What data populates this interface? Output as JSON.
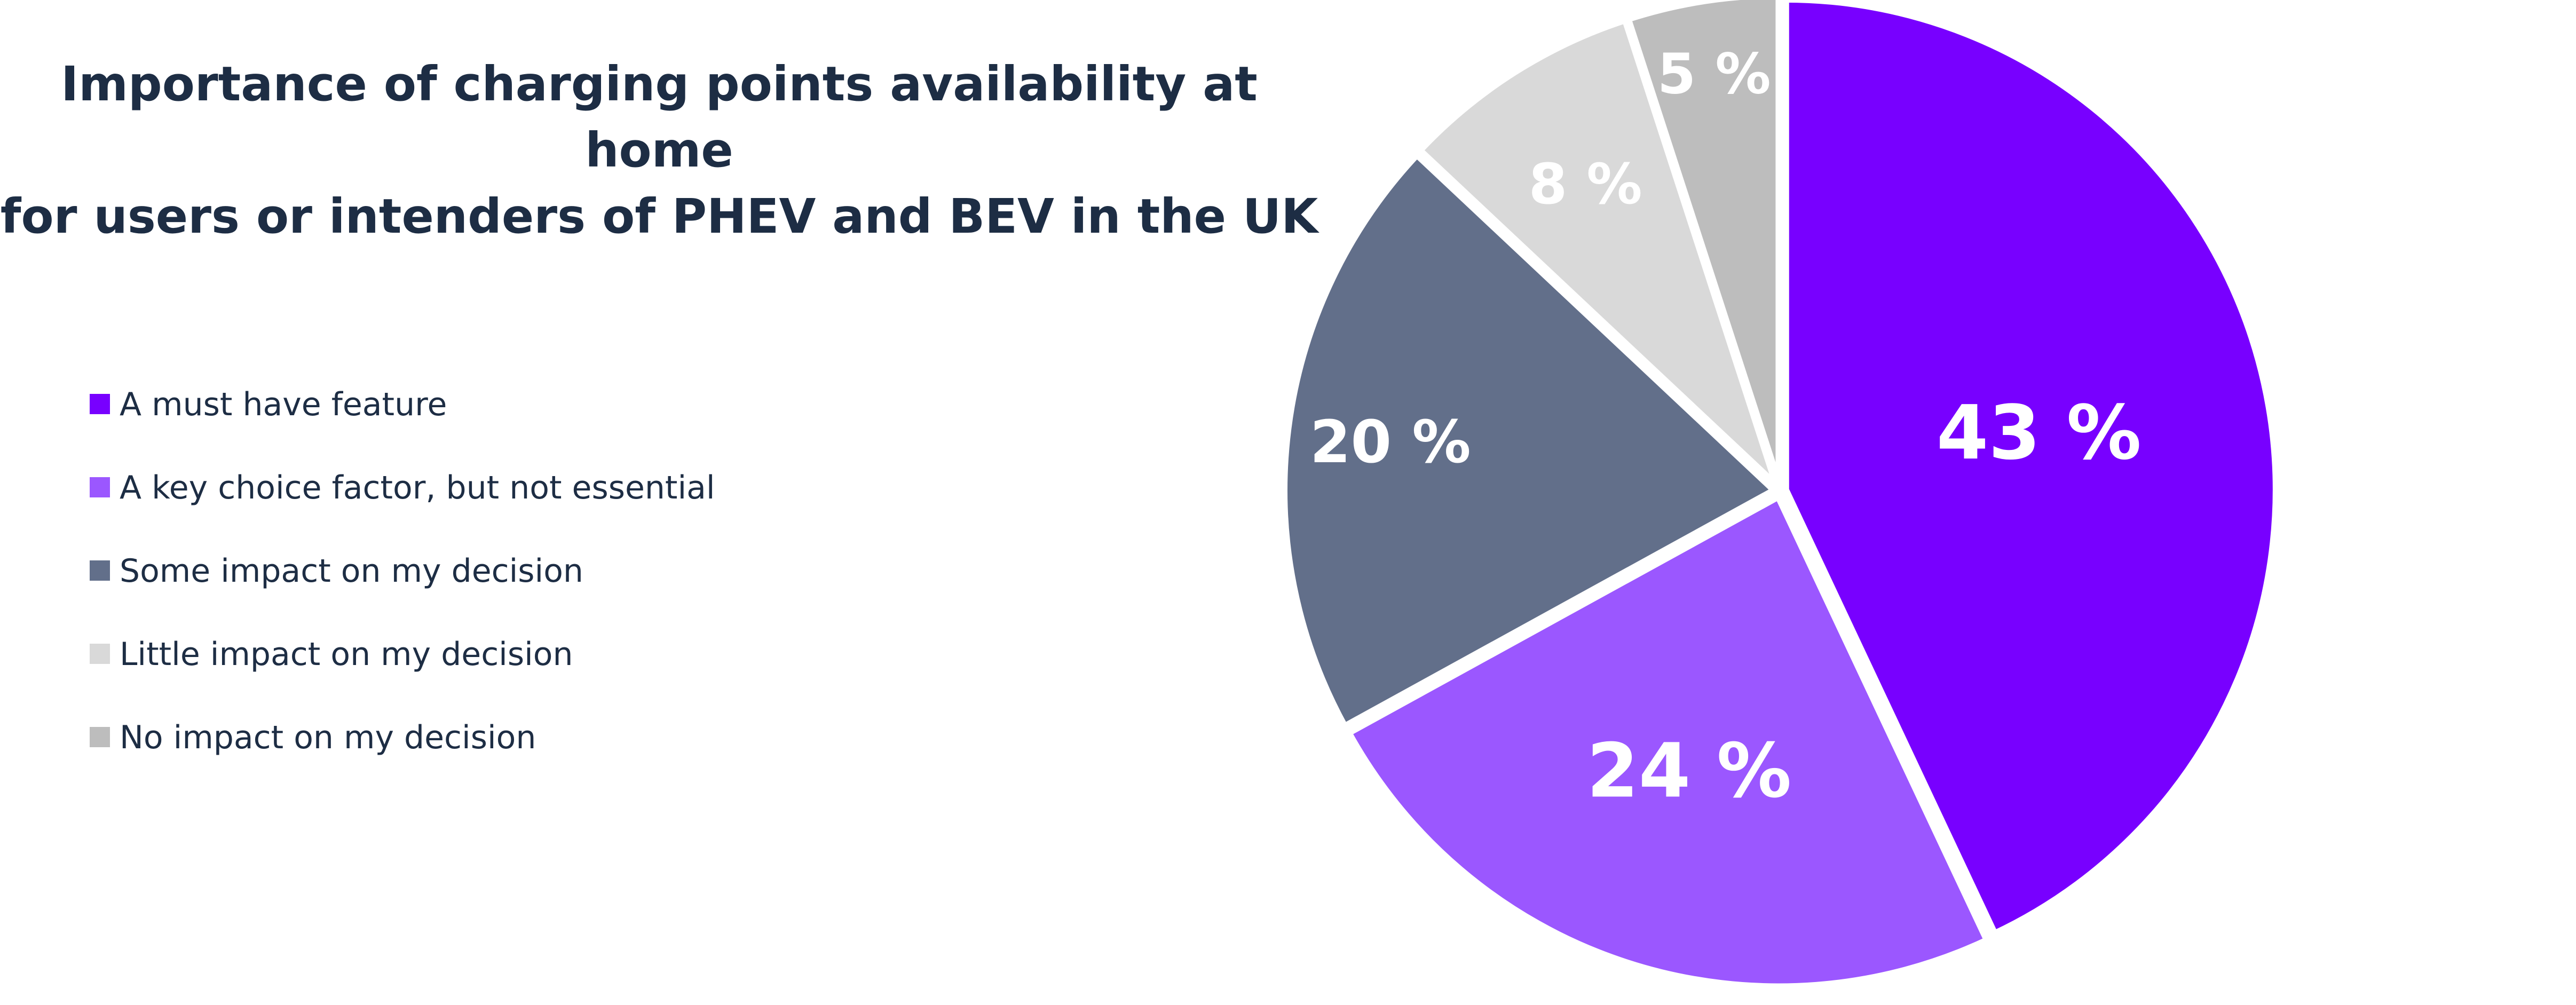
{
  "chart_data": {
    "type": "pie",
    "title_lines": [
      "Importance of charging points availability at home",
      "for users or intenders of PHEV and BEV in the UK"
    ],
    "legend_position": "left",
    "slices": [
      {
        "label": "A must have feature",
        "value": 43,
        "display": "43 %",
        "color": "#7800ff"
      },
      {
        "label": "A key choice factor, but not essential",
        "value": 24,
        "display": "24 %",
        "color": "#9b57ff"
      },
      {
        "label": "Some impact on my decision",
        "value": 20,
        "display": "20 %",
        "color": "#626f8a"
      },
      {
        "label": "Little impact on my decision",
        "value": 8,
        "display": "8 %",
        "color": "#d9d9d9"
      },
      {
        "label": "No impact on my decision",
        "value": 5,
        "display": "5 %",
        "color": "#bdbdbd"
      }
    ]
  }
}
